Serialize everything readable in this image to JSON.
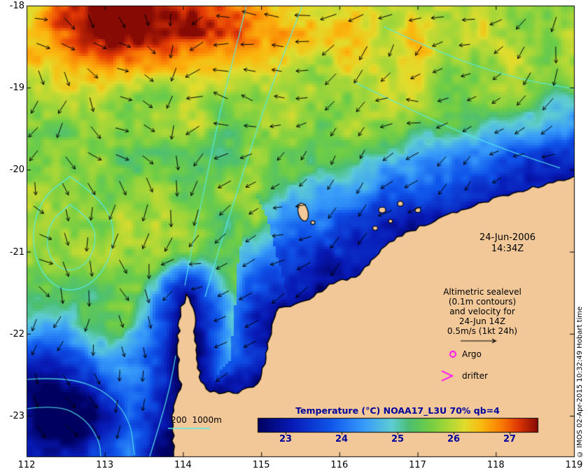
{
  "figure": {
    "axes": {
      "x_ticks": [
        "112",
        "113",
        "114",
        "115",
        "116",
        "117",
        "118",
        "119"
      ],
      "y_ticks": [
        "-18",
        "-19",
        "-20",
        "-21",
        "-22",
        "-23"
      ]
    },
    "annotations": {
      "datetime_line1": "24-Jun-2006",
      "datetime_line2": "14:34Z",
      "altimetric_lines": [
        "Altimetric sealevel",
        "(0.1m contours)",
        "and velocity for",
        "24-Jun 14Z",
        "0.5m/s (1kt 24h)"
      ],
      "argo_label": "Argo",
      "drifter_label": "drifter",
      "depth_scale_label": "200  1000m",
      "copyright": "© IMOS 02-Apr-2015 10:32:49 Hobart time"
    },
    "colorbar": {
      "title": "Temperature (°C) NOAA17_L3U 70% qb=4",
      "tick_labels": [
        "23",
        "24",
        "25",
        "26",
        "27"
      ],
      "value_range": [
        22.5,
        27.5
      ],
      "title_color": "#00009a"
    },
    "colors": {
      "land": "#f2c898",
      "contour_cyan": "#55eded",
      "marker_magenta": "#ff00ff",
      "arrow_black": "#000000",
      "sst_colormap": [
        [
          22.5,
          "#000060"
        ],
        [
          23.1,
          "#0819b4"
        ],
        [
          23.8,
          "#0f55eb"
        ],
        [
          24.4,
          "#379bfa"
        ],
        [
          24.9,
          "#5fcdd2"
        ],
        [
          25.2,
          "#4bbe73"
        ],
        [
          25.55,
          "#6ecd46"
        ],
        [
          25.9,
          "#aad737"
        ],
        [
          26.2,
          "#e1dc2d"
        ],
        [
          26.5,
          "#fab90f"
        ],
        [
          26.85,
          "#fa7d05"
        ],
        [
          27.15,
          "#e13705"
        ],
        [
          27.5,
          "#870a05"
        ]
      ]
    }
  }
}
